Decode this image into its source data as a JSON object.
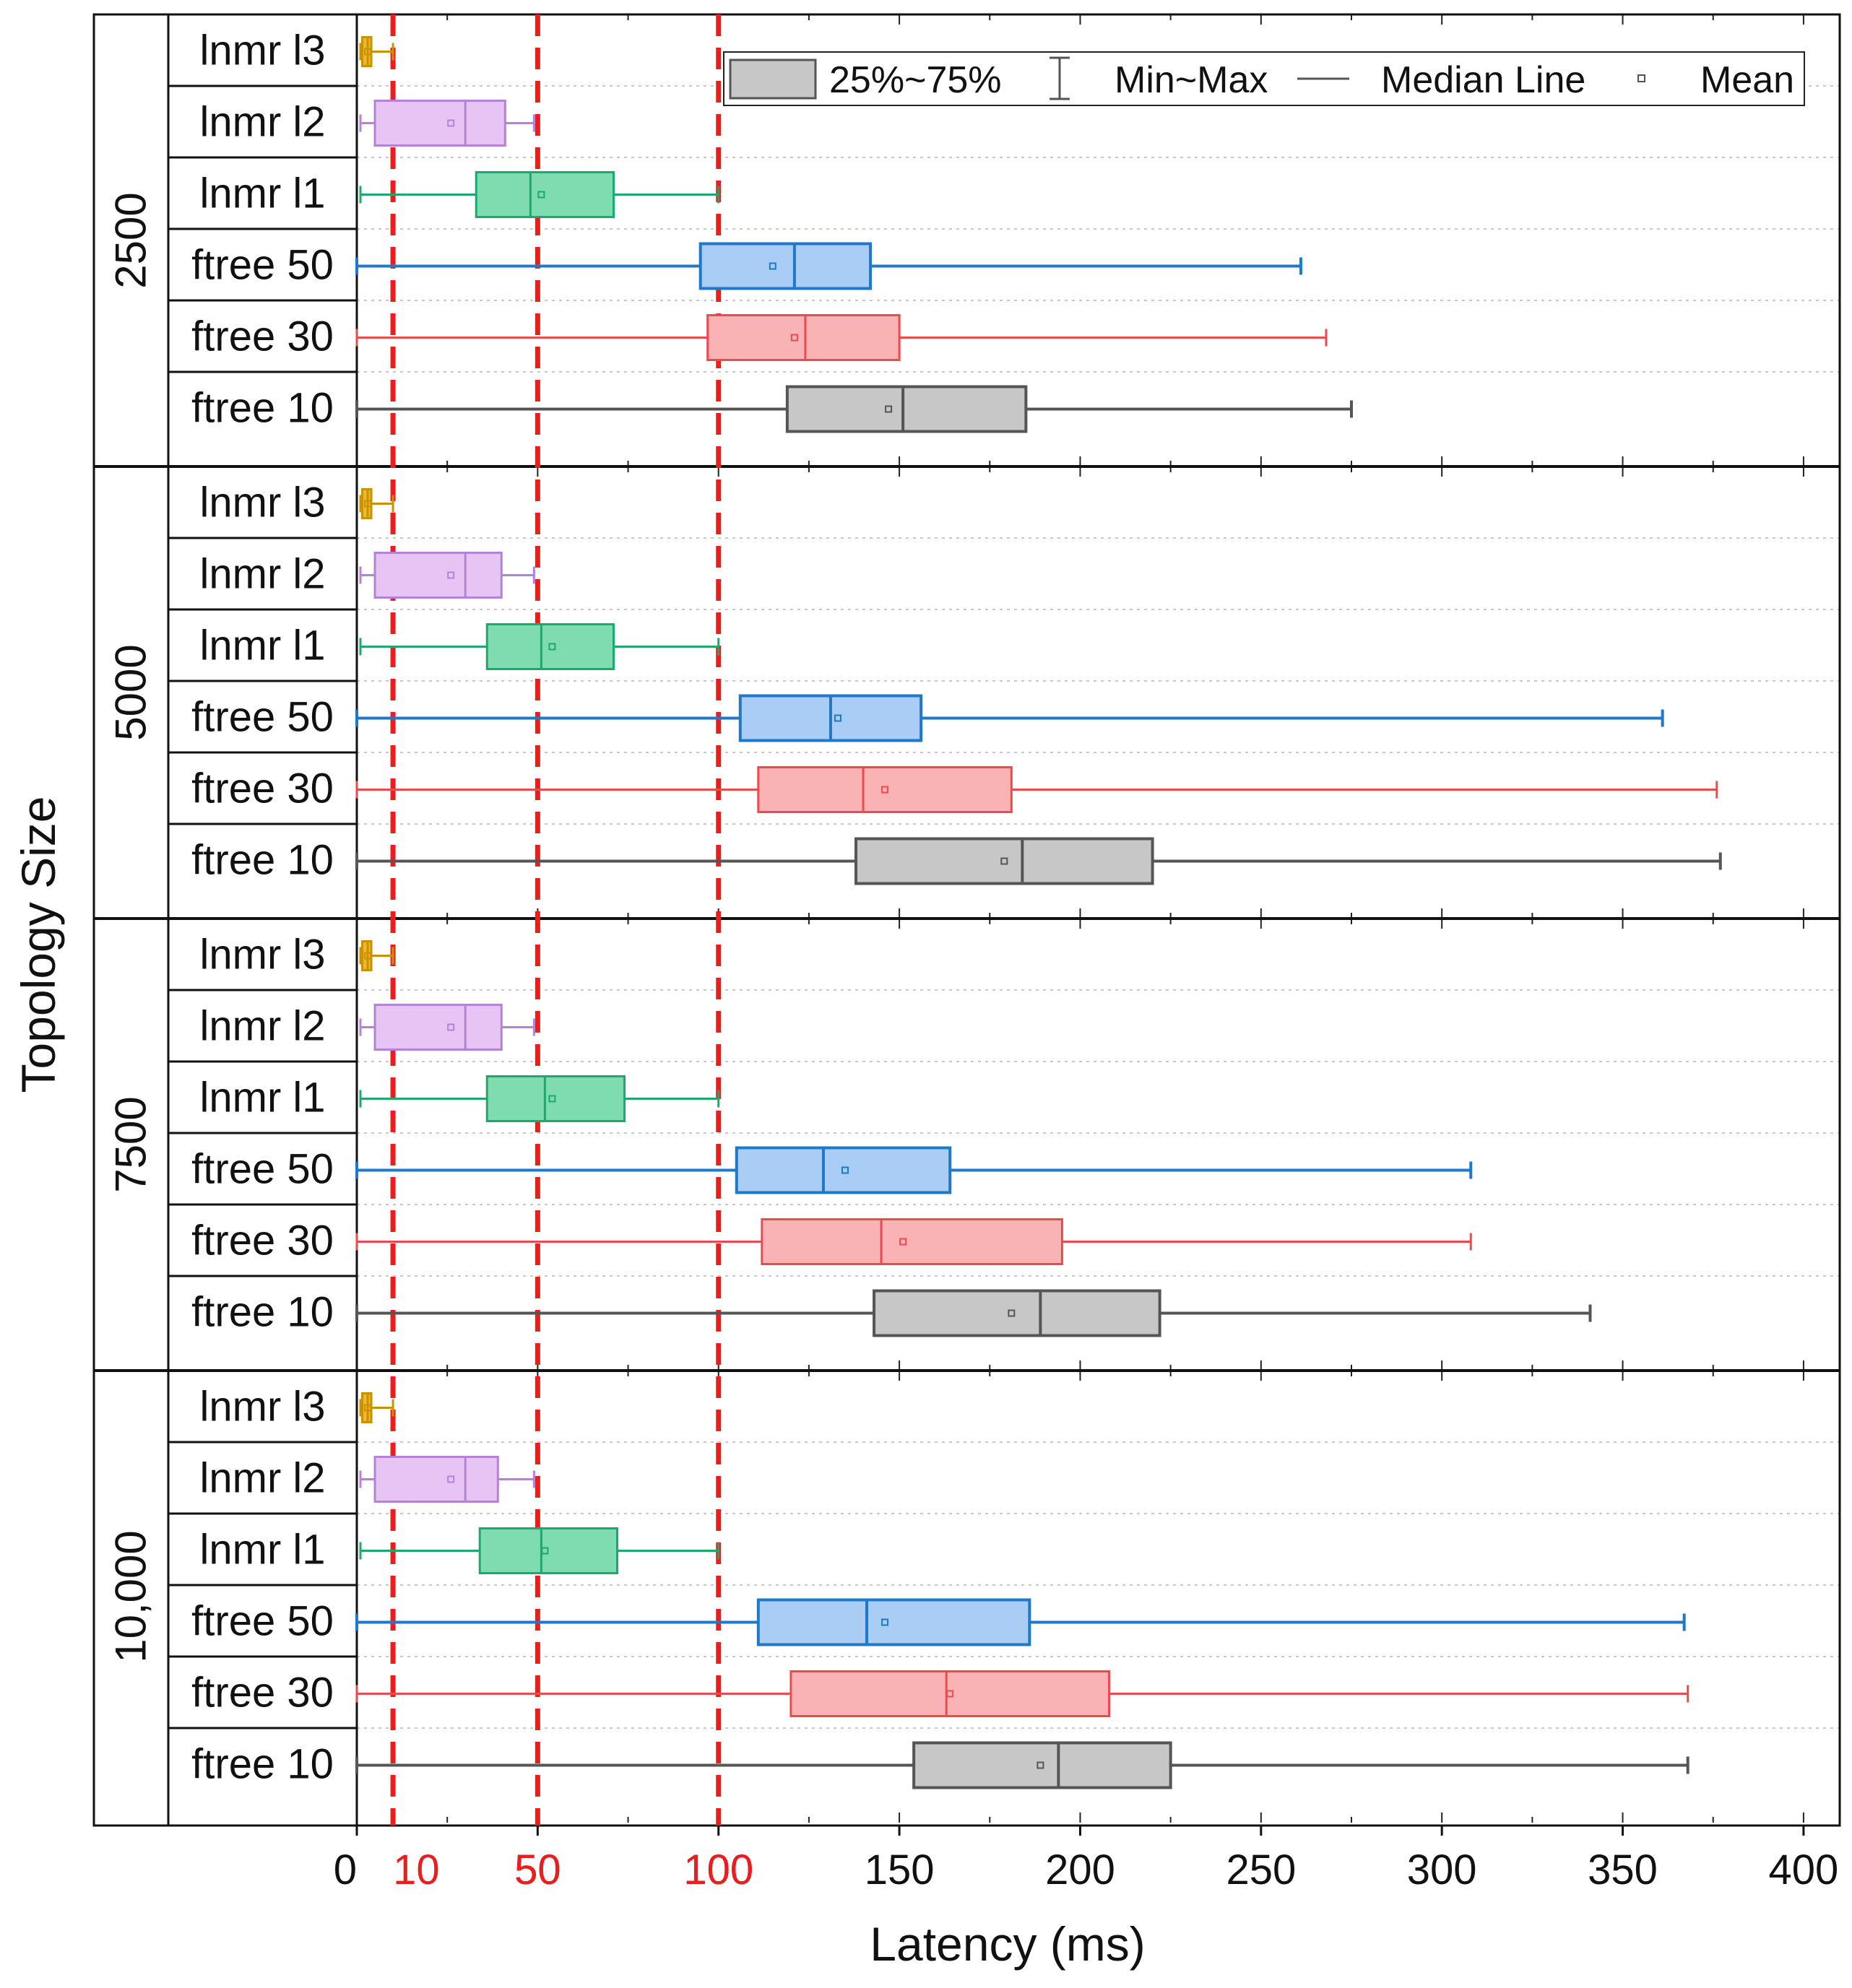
{
  "chart_data": {
    "type": "box",
    "orientation": "horizontal",
    "xlabel": "Latency (ms)",
    "ylabel": "Topology Size",
    "xlim": [
      0,
      410
    ],
    "xticks": [
      0,
      50,
      100,
      150,
      200,
      250,
      300,
      350,
      400
    ],
    "red_ticks": [
      10,
      50,
      100
    ],
    "reference_lines": [
      10,
      50,
      100
    ],
    "reference_line_color": "#ee1c1c",
    "legend": {
      "position": "top-right",
      "box_label": "25%~75%",
      "whisker_label": "Min~Max",
      "median_label": "Median Line",
      "mean_label": "Mean"
    },
    "series_colors": {
      "lnmr l3": {
        "fill": "#f2b531",
        "stroke": "#c99300"
      },
      "lnmr l2": {
        "fill": "#e6c5f4",
        "stroke": "#b681d6"
      },
      "lnmr l1": {
        "fill": "#7fdcb0",
        "stroke": "#1ea86b"
      },
      "ftree 50": {
        "fill": "#a9cdf5",
        "stroke": "#1f78c8"
      },
      "ftree 30": {
        "fill": "#f9b3b5",
        "stroke": "#ec4a4f"
      },
      "ftree 10": {
        "fill": "#c7c7c7",
        "stroke": "#555555"
      }
    },
    "groups": [
      {
        "label": "2500",
        "boxes": [
          {
            "name": "lnmr l3",
            "label": "lnmr l3",
            "min": 1,
            "q1": 1.5,
            "median": 3,
            "q3": 4,
            "max": 10,
            "mean": 3
          },
          {
            "name": "lnmr l2",
            "label": "lnmr l2",
            "min": 1,
            "q1": 5,
            "median": 30,
            "q3": 41,
            "max": 49,
            "mean": 26
          },
          {
            "name": "lnmr l1",
            "label": "lnmr l1",
            "min": 1,
            "q1": 33,
            "median": 48,
            "q3": 71,
            "max": 100,
            "mean": 51
          },
          {
            "name": "ftree 50",
            "label": "ftree 50",
            "min": 0,
            "q1": 95,
            "median": 121,
            "q3": 142,
            "max": 261,
            "mean": 115
          },
          {
            "name": "ftree 30",
            "label": "ftree 30",
            "min": 0,
            "q1": 97,
            "median": 124,
            "q3": 150,
            "max": 268,
            "mean": 121
          },
          {
            "name": "ftree 10",
            "label": "ftree 10",
            "min": 0,
            "q1": 119,
            "median": 151,
            "q3": 185,
            "max": 275,
            "mean": 147
          }
        ]
      },
      {
        "label": "5000",
        "boxes": [
          {
            "name": "lnmr l3",
            "label": "lnmr l3",
            "min": 1,
            "q1": 1.5,
            "median": 3,
            "q3": 4,
            "max": 10,
            "mean": 3
          },
          {
            "name": "lnmr l2",
            "label": "lnmr l2",
            "min": 1,
            "q1": 5,
            "median": 30,
            "q3": 40,
            "max": 49,
            "mean": 26
          },
          {
            "name": "lnmr l1",
            "label": "lnmr l1",
            "min": 1,
            "q1": 36,
            "median": 51,
            "q3": 71,
            "max": 100,
            "mean": 54
          },
          {
            "name": "ftree 50",
            "label": "ftree 50",
            "min": 0,
            "q1": 106,
            "median": 131,
            "q3": 156,
            "max": 361,
            "mean": 133
          },
          {
            "name": "ftree 30",
            "label": "ftree 30",
            "min": 0,
            "q1": 111,
            "median": 140,
            "q3": 181,
            "max": 376,
            "mean": 146
          },
          {
            "name": "ftree 10",
            "label": "ftree 10",
            "min": 0,
            "q1": 138,
            "median": 184,
            "q3": 220,
            "max": 377,
            "mean": 179
          }
        ]
      },
      {
        "label": "7500",
        "boxes": [
          {
            "name": "lnmr l3",
            "label": "lnmr l3",
            "min": 1,
            "q1": 1.5,
            "median": 3,
            "q3": 4,
            "max": 10,
            "mean": 3
          },
          {
            "name": "lnmr l2",
            "label": "lnmr l2",
            "min": 1,
            "q1": 5,
            "median": 30,
            "q3": 40,
            "max": 49,
            "mean": 26
          },
          {
            "name": "lnmr l1",
            "label": "lnmr l1",
            "min": 1,
            "q1": 36,
            "median": 52,
            "q3": 74,
            "max": 100,
            "mean": 54
          },
          {
            "name": "ftree 50",
            "label": "ftree 50",
            "min": 0,
            "q1": 105,
            "median": 129,
            "q3": 164,
            "max": 308,
            "mean": 135
          },
          {
            "name": "ftree 30",
            "label": "ftree 30",
            "min": 0,
            "q1": 112,
            "median": 145,
            "q3": 195,
            "max": 308,
            "mean": 151
          },
          {
            "name": "ftree 10",
            "label": "ftree 10",
            "min": 0,
            "q1": 143,
            "median": 189,
            "q3": 222,
            "max": 341,
            "mean": 181
          }
        ]
      },
      {
        "label": "10,000",
        "boxes": [
          {
            "name": "lnmr l3",
            "label": "lnmr l3",
            "min": 1,
            "q1": 1.5,
            "median": 3,
            "q3": 4,
            "max": 10,
            "mean": 3
          },
          {
            "name": "lnmr l2",
            "label": "lnmr l2",
            "min": 1,
            "q1": 5,
            "median": 30,
            "q3": 39,
            "max": 49,
            "mean": 26
          },
          {
            "name": "lnmr l1",
            "label": "lnmr l1",
            "min": 1,
            "q1": 34,
            "median": 51,
            "q3": 72,
            "max": 100,
            "mean": 52
          },
          {
            "name": "ftree 50",
            "label": "ftree 50",
            "min": 0,
            "q1": 111,
            "median": 141,
            "q3": 186,
            "max": 367,
            "mean": 146
          },
          {
            "name": "ftree 30",
            "label": "ftree 30",
            "min": 0,
            "q1": 120,
            "median": 163,
            "q3": 208,
            "max": 368,
            "mean": 164
          },
          {
            "name": "ftree 10",
            "label": "ftree 10",
            "min": 0,
            "q1": 154,
            "median": 194,
            "q3": 225,
            "max": 368,
            "mean": 189
          }
        ]
      }
    ]
  }
}
